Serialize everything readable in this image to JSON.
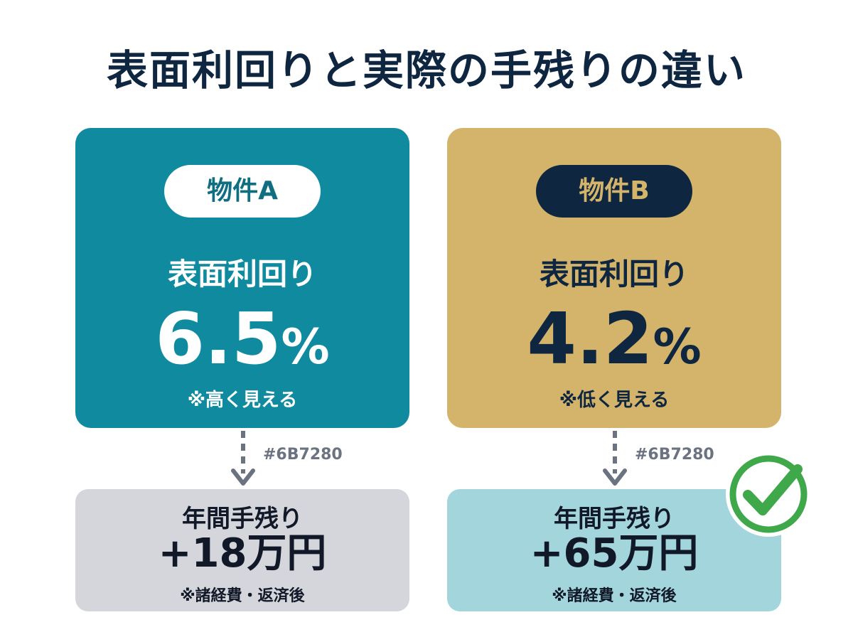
{
  "title": "表面利回りと実際の手残りの違い",
  "property_a": {
    "badge": "物件A",
    "yield_label": "表面利回り",
    "yield_value": "6.5",
    "yield_unit": "%",
    "yield_note": "※高く見える",
    "connector_label": "#6B7280",
    "result_label": "年間手残り",
    "result_value": "+18万円",
    "result_note": "※諸経費・返済後"
  },
  "property_b": {
    "badge": "物件B",
    "yield_label": "表面利回り",
    "yield_value": "4.2",
    "yield_unit": "%",
    "yield_note": "※低く見える",
    "connector_label": "#6B7280",
    "result_label": "年間手残り",
    "result_value": "+65万円",
    "result_note": "※諸経費・返済後"
  },
  "colors": {
    "title": "#0f2640",
    "card_a": "#0f8a9e",
    "card_b": "#d4b36a",
    "result_a": "#d4d6dc",
    "result_b": "#a3d6dc",
    "arrow": "#6b7280",
    "check": "#3fa84a"
  },
  "icons": {
    "winner": "check-circle-icon",
    "connector": "dashed-arrow-down-icon"
  }
}
